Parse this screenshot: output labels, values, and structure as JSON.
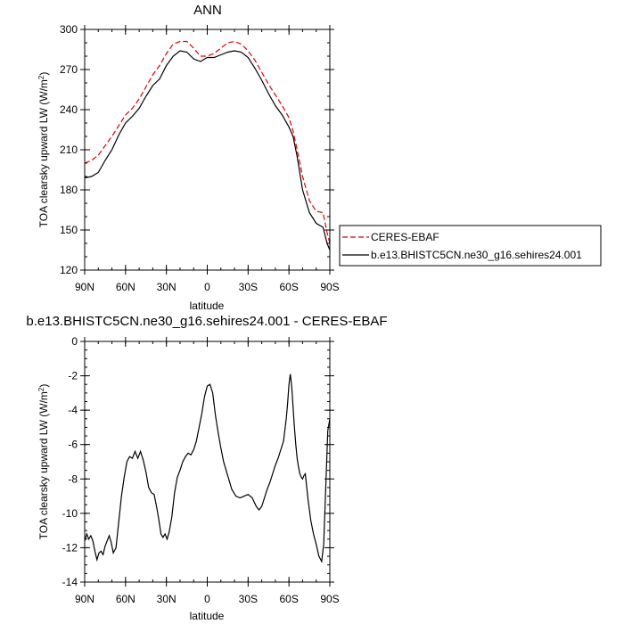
{
  "chart_data": [
    {
      "type": "line",
      "title": "ANN",
      "xlabel": "latitude",
      "ylabel": "TOA clearsky upward LW (W/m",
      "ylabel_superscript": "2",
      "ylabel_close": ")",
      "xlim": [
        90,
        -90
      ],
      "ylim": [
        120,
        300
      ],
      "x_ticks": [
        90,
        60,
        30,
        0,
        -30,
        -60,
        -90
      ],
      "x_tick_labels": [
        "90N",
        "60N",
        "30N",
        "0",
        "30S",
        "60S",
        "90S"
      ],
      "y_ticks": [
        120,
        150,
        180,
        210,
        240,
        270,
        300
      ],
      "y_tick_labels": [
        "120",
        "150",
        "180",
        "210",
        "240",
        "270",
        "300"
      ],
      "legend_position": "right",
      "series": [
        {
          "name": "CERES-EBAF",
          "color": "#dd0000",
          "dash": "dashed",
          "x": [
            90,
            85,
            80,
            75,
            70,
            65,
            60,
            55,
            50,
            45,
            40,
            35,
            30,
            25,
            20,
            15,
            10,
            5,
            0,
            -5,
            -10,
            -15,
            -20,
            -25,
            -30,
            -35,
            -40,
            -45,
            -50,
            -55,
            -60,
            -63,
            -66,
            -70,
            -75,
            -80,
            -85,
            -88,
            -90
          ],
          "y": [
            200,
            202,
            206,
            213,
            220,
            228,
            236,
            241,
            248,
            257,
            266,
            273,
            282,
            289,
            291,
            291,
            286,
            280,
            280,
            282,
            286,
            290,
            291,
            289,
            284,
            277,
            268,
            259,
            251,
            243,
            234,
            224,
            210,
            190,
            172,
            164,
            163,
            148,
            140
          ]
        },
        {
          "name": "b.e13.BHISTC5CN.ne30_g16.sehires24.001",
          "color": "#000000",
          "dash": "solid",
          "x": [
            90,
            85,
            80,
            75,
            70,
            65,
            60,
            55,
            50,
            45,
            40,
            35,
            30,
            25,
            20,
            15,
            10,
            5,
            0,
            -5,
            -10,
            -15,
            -20,
            -25,
            -30,
            -35,
            -40,
            -45,
            -50,
            -55,
            -60,
            -63,
            -66,
            -70,
            -75,
            -80,
            -85,
            -88,
            -90
          ],
          "y": [
            189,
            190,
            193,
            202,
            210,
            221,
            230,
            235,
            241,
            250,
            258,
            263,
            273,
            280,
            284,
            283,
            278,
            276,
            279,
            279,
            281,
            283,
            284,
            283,
            279,
            271,
            262,
            252,
            243,
            236,
            227,
            220,
            205,
            180,
            163,
            155,
            152,
            140,
            135
          ]
        }
      ]
    },
    {
      "type": "line",
      "title": "b.e13.BHISTC5CN.ne30_g16.sehires24.001 - CERES-EBAF",
      "xlabel": "latitude",
      "ylabel": "TOA clearsky upward LW (W/m",
      "ylabel_superscript": "2",
      "ylabel_close": ")",
      "xlim": [
        90,
        -90
      ],
      "ylim": [
        -14,
        0
      ],
      "x_ticks": [
        90,
        60,
        30,
        0,
        -30,
        -60,
        -90
      ],
      "x_tick_labels": [
        "90N",
        "60N",
        "30N",
        "0",
        "30S",
        "60S",
        "90S"
      ],
      "y_ticks": [
        -14,
        -12,
        -10,
        -8,
        -6,
        -4,
        -2,
        0
      ],
      "y_tick_labels": [
        "-14",
        "-12",
        "-10",
        "-8",
        "-6",
        "-4",
        "-2",
        "0"
      ],
      "series": [
        {
          "color": "#000000",
          "dash": "solid",
          "x": [
            90,
            88.5,
            87,
            85.5,
            84,
            82.5,
            81,
            79.5,
            78,
            76.5,
            75,
            73.5,
            72,
            70.5,
            69,
            67,
            65,
            63,
            61,
            59,
            57,
            55,
            53,
            51,
            49,
            47,
            45,
            43,
            41,
            39,
            37,
            35.5,
            34,
            32.5,
            31,
            29.5,
            28,
            26,
            24,
            22,
            20,
            18,
            16,
            14,
            12,
            10,
            8,
            6,
            4,
            2,
            0,
            -2,
            -4,
            -6,
            -8,
            -10,
            -12,
            -15,
            -18,
            -21,
            -24,
            -27,
            -30,
            -33,
            -36,
            -38,
            -40,
            -42,
            -44,
            -46,
            -48,
            -50,
            -52,
            -54,
            -56,
            -58,
            -59,
            -60,
            -61,
            -62,
            -63,
            -64,
            -65,
            -66,
            -67,
            -68,
            -69,
            -70,
            -71,
            -72,
            -74,
            -76,
            -78,
            -80,
            -82,
            -84,
            -85.5,
            -87,
            -88.5,
            -90
          ],
          "y": [
            -11.6,
            -11.2,
            -11.5,
            -11.3,
            -11.6,
            -12.2,
            -12.7,
            -12.3,
            -12.2,
            -12.4,
            -11.9,
            -11.6,
            -11.3,
            -11.7,
            -12.3,
            -12.0,
            -10.5,
            -9.0,
            -7.9,
            -7.0,
            -6.7,
            -6.8,
            -6.4,
            -6.8,
            -6.4,
            -6.9,
            -7.6,
            -8.5,
            -8.8,
            -8.9,
            -9.7,
            -10.4,
            -11.2,
            -11.4,
            -11.2,
            -11.5,
            -11.1,
            -10.2,
            -8.8,
            -7.9,
            -7.5,
            -7.0,
            -6.7,
            -6.5,
            -6.6,
            -6.3,
            -5.8,
            -5.0,
            -4.2,
            -3.2,
            -2.6,
            -2.5,
            -3.0,
            -4.3,
            -5.3,
            -6.2,
            -7.0,
            -7.8,
            -8.6,
            -9.0,
            -9.1,
            -9.0,
            -8.9,
            -9.1,
            -9.6,
            -9.8,
            -9.6,
            -9.1,
            -8.6,
            -8.2,
            -7.7,
            -7.2,
            -6.8,
            -6.3,
            -5.8,
            -4.5,
            -3.6,
            -2.5,
            -1.9,
            -2.6,
            -3.8,
            -5.0,
            -6.0,
            -6.8,
            -7.3,
            -7.7,
            -7.9,
            -8.0,
            -7.8,
            -7.7,
            -9.2,
            -10.4,
            -11.2,
            -11.8,
            -12.5,
            -12.8,
            -11.8,
            -8.5,
            -5.2,
            -4.5
          ]
        }
      ]
    }
  ]
}
